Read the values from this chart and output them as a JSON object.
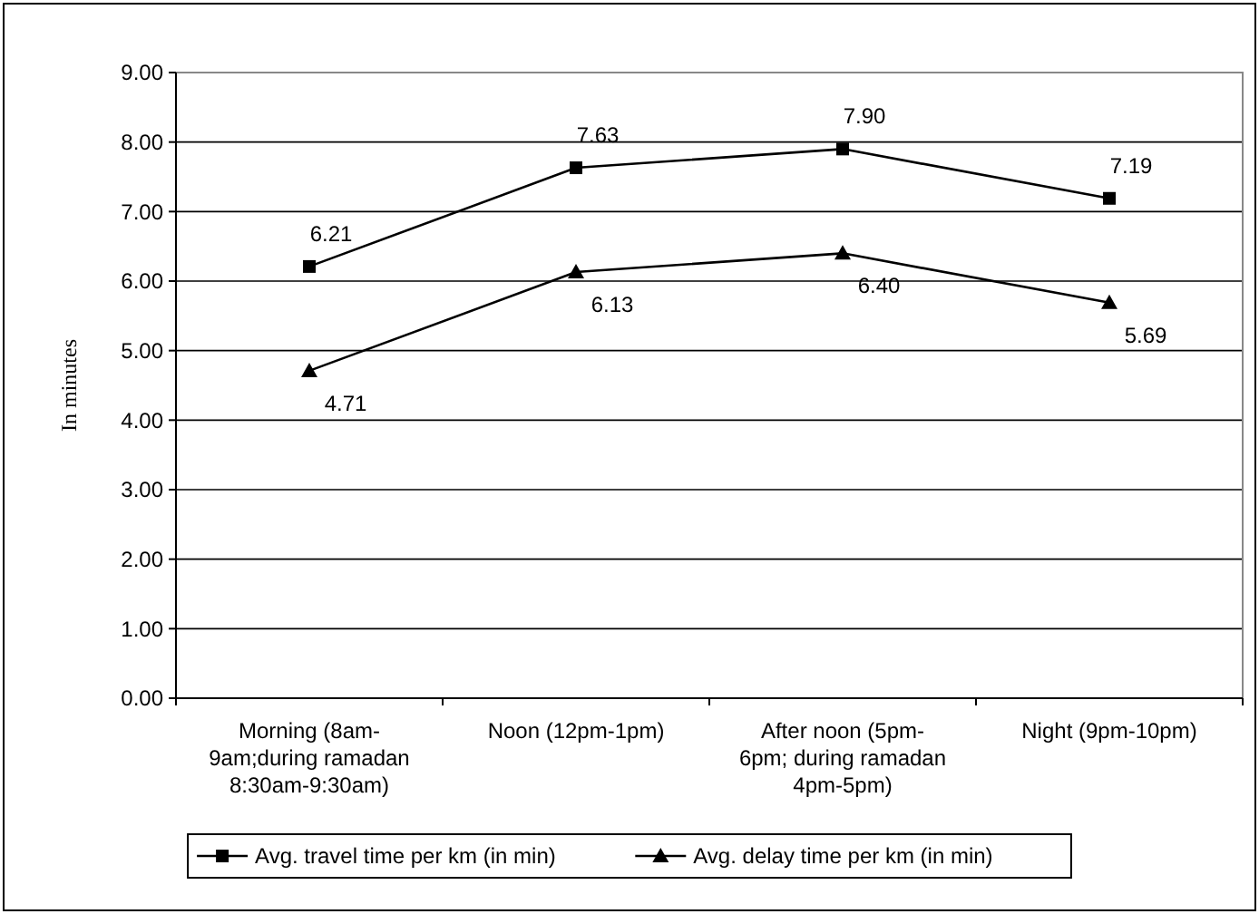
{
  "chart_data": {
    "type": "line",
    "ylabel": "In minutes",
    "categories": [
      "Morning (8am-9am;during ramadan 8:30am-9:30am)",
      "Noon (12pm-1pm)",
      "After noon (5pm-6pm; during ramadan 4pm-5pm)",
      "Night (9pm-10pm)"
    ],
    "series": [
      {
        "name": "Avg. travel time per km (in min)",
        "color": "#000000",
        "marker": "square",
        "values": [
          6.21,
          7.63,
          7.9,
          7.19
        ],
        "value_labels": [
          "6.21",
          "7.63",
          "7.90",
          "7.19"
        ]
      },
      {
        "name": "Avg. delay time per km (in min)",
        "color": "#000000",
        "marker": "triangle",
        "values": [
          4.71,
          6.13,
          6.4,
          5.69
        ],
        "value_labels": [
          "4.71",
          "6.13",
          "6.40",
          "5.69"
        ]
      }
    ],
    "ylim": [
      0,
      9
    ],
    "yticks": [
      {
        "value": 0,
        "label": "0.00"
      },
      {
        "value": 1,
        "label": "1.00"
      },
      {
        "value": 2,
        "label": "2.00"
      },
      {
        "value": 3,
        "label": "3.00"
      },
      {
        "value": 4,
        "label": "4.00"
      },
      {
        "value": 5,
        "label": "5.00"
      },
      {
        "value": 6,
        "label": "6.00"
      },
      {
        "value": 7,
        "label": "7.00"
      },
      {
        "value": 8,
        "label": "8.00"
      },
      {
        "value": 9,
        "label": "9.00"
      }
    ],
    "grid": "y",
    "legend": "bottom",
    "line_style": "solid"
  }
}
